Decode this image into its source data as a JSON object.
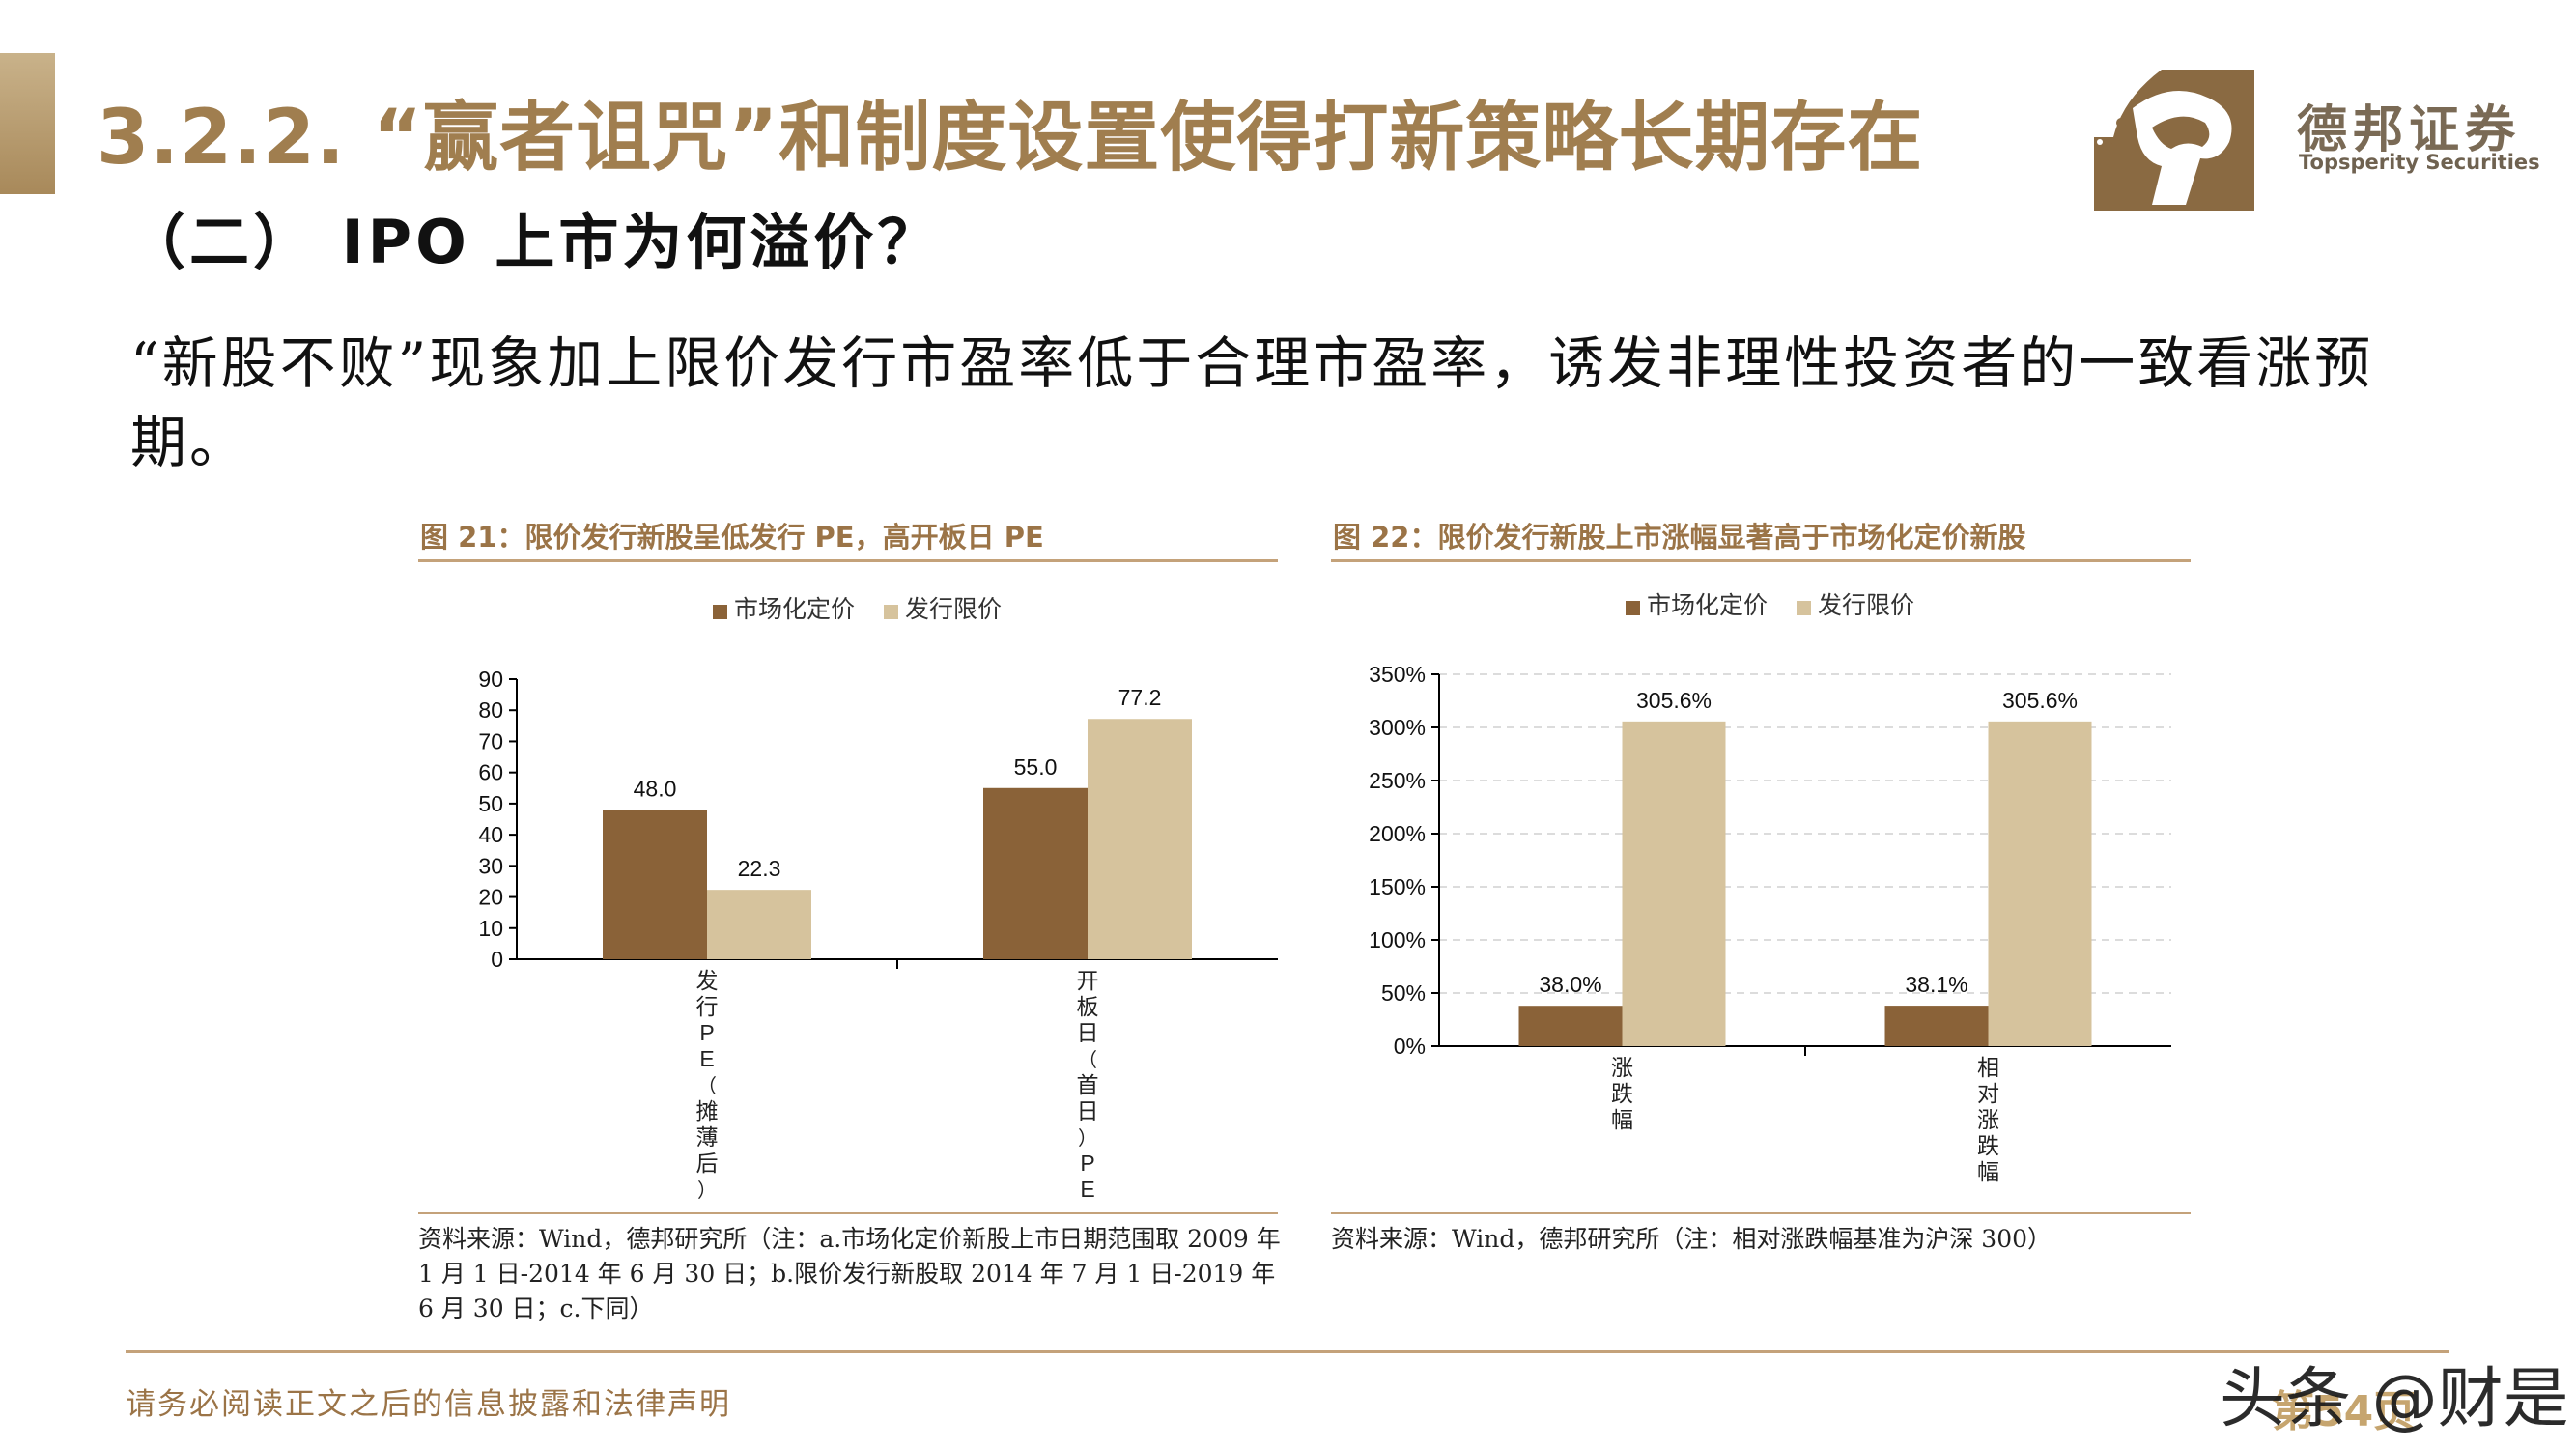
{
  "header": {
    "title": "3.2.2. “赢者诅咒”和制度设置使得打新策略长期存在",
    "subtitle": "（二） IPO 上市为何溢价？",
    "body": "“新股不败”现象加上限价发行市盈率低于合理市盈率，诱发非理性投资者的一致看涨预期。"
  },
  "logo": {
    "name_cn": "德邦证券",
    "name_en": "Topsperity Securities",
    "brand_color": "#8a6a42"
  },
  "figure21": {
    "title": "图 21：限价发行新股呈低发行 PE，高开板日 PE",
    "source": "资料来源：Wind，德邦研究所（注：a.市场化定价新股上市日期范围取 2009 年 1 月 1 日-2014 年 6 月 30 日；b.限价发行新股取 2014 年 7 月 1 日-2019 年 6 月 30 日；c.下同）"
  },
  "figure22": {
    "title": "图 22：限价发行新股上市涨幅显著高于市场化定价新股",
    "source": "资料来源：Wind，德邦研究所（注：相对涨跌幅基准为沪深 300）"
  },
  "chart_data": [
    {
      "type": "bar",
      "categories": [
        "发行PE（摊薄后）",
        "开板日（首日）PE"
      ],
      "series": [
        {
          "name": "市场化定价",
          "values": [
            48.0,
            55.0
          ],
          "color": "#8a6238"
        },
        {
          "name": "发行限价",
          "values": [
            22.3,
            77.2
          ],
          "color": "#d6c39d"
        }
      ],
      "data_labels": [
        [
          "48.0",
          "55.0"
        ],
        [
          "22.3",
          "77.2"
        ]
      ],
      "yticks": [
        "0",
        "10",
        "20",
        "30",
        "40",
        "50",
        "60",
        "70",
        "80",
        "90"
      ],
      "ylim": [
        0,
        90
      ],
      "grid": false,
      "legend": "top-center"
    },
    {
      "type": "bar",
      "categories": [
        "涨跌幅",
        "相对涨跌幅"
      ],
      "series": [
        {
          "name": "市场化定价",
          "values": [
            38.0,
            38.1
          ],
          "color": "#8a6238"
        },
        {
          "name": "发行限价",
          "values": [
            305.6,
            305.6
          ],
          "color": "#d6c39d"
        }
      ],
      "data_labels": [
        [
          "38.0%",
          "38.1%"
        ],
        [
          "305.6%",
          "305.6%"
        ]
      ],
      "yticks": [
        "0%",
        "50%",
        "100%",
        "150%",
        "200%",
        "250%",
        "300%",
        "350%"
      ],
      "ylim": [
        0,
        350
      ],
      "grid": true,
      "legend": "top-center"
    }
  ],
  "footer": {
    "disclaimer": "请务必阅读正文之后的信息披露和法律声明",
    "page": "第54页",
    "watermark": "头条 @财是"
  }
}
